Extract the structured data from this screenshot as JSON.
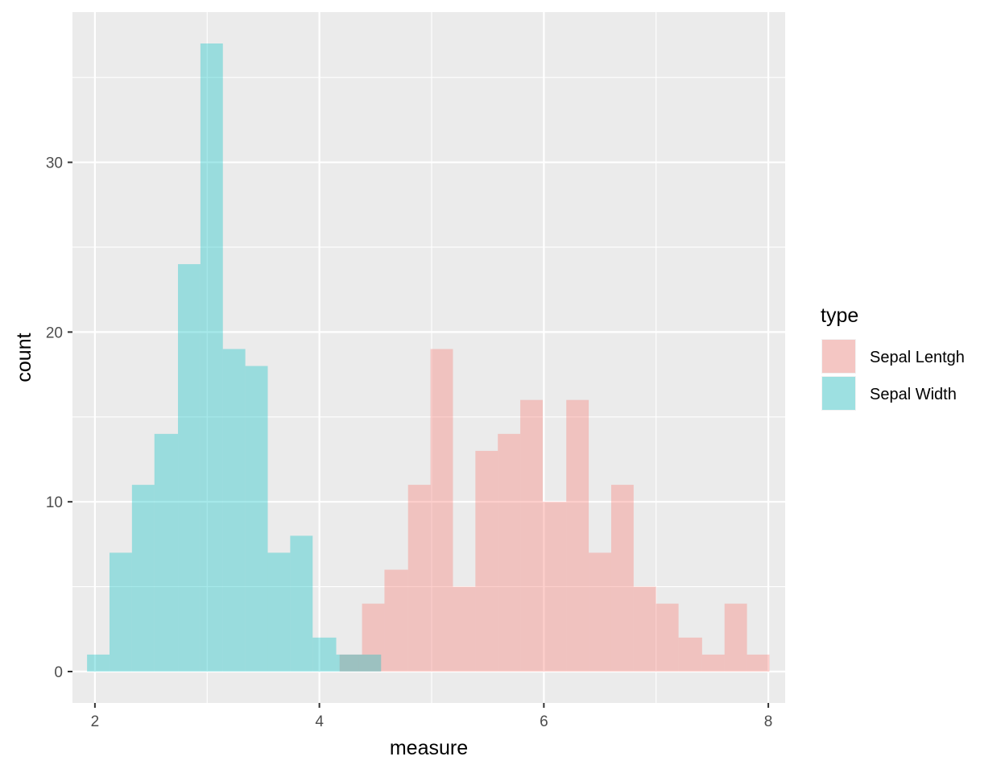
{
  "chart_data": {
    "type": "bar",
    "title": "",
    "xlabel": "measure",
    "ylabel": "count",
    "xlim": [
      1.8,
      8.15
    ],
    "ylim": [
      -1.85,
      38.85
    ],
    "x_ticks": [
      2,
      4,
      6,
      8
    ],
    "x_tick_labels": [
      "2",
      "4",
      "6",
      "8"
    ],
    "y_ticks": [
      0,
      10,
      20,
      30
    ],
    "y_tick_labels": [
      "0",
      "10",
      "20",
      "30"
    ],
    "grid": true,
    "bin_width": 0.2017,
    "legend": {
      "title": "type",
      "position": "right",
      "entries": [
        {
          "label": "Sepal Lentgh",
          "color": "#F8766D"
        },
        {
          "label": "Sepal Width",
          "color": "#00BFC4"
        }
      ]
    },
    "series": [
      {
        "name": "Sepal Lentgh",
        "color": "#F8766D",
        "opacity": 0.35,
        "bins": [
          {
            "x0": 4.18,
            "x1": 4.38,
            "count": 1
          },
          {
            "x0": 4.38,
            "x1": 4.58,
            "count": 4
          },
          {
            "x0": 4.58,
            "x1": 4.79,
            "count": 6
          },
          {
            "x0": 4.79,
            "x1": 4.99,
            "count": 11
          },
          {
            "x0": 4.99,
            "x1": 5.19,
            "count": 19
          },
          {
            "x0": 5.19,
            "x1": 5.39,
            "count": 5
          },
          {
            "x0": 5.39,
            "x1": 5.59,
            "count": 13
          },
          {
            "x0": 5.59,
            "x1": 5.79,
            "count": 14
          },
          {
            "x0": 5.79,
            "x1": 5.99,
            "count": 16
          },
          {
            "x0": 5.99,
            "x1": 6.2,
            "count": 10
          },
          {
            "x0": 6.2,
            "x1": 6.4,
            "count": 16
          },
          {
            "x0": 6.4,
            "x1": 6.6,
            "count": 7
          },
          {
            "x0": 6.6,
            "x1": 6.8,
            "count": 11
          },
          {
            "x0": 6.8,
            "x1": 7.0,
            "count": 5
          },
          {
            "x0": 7.0,
            "x1": 7.2,
            "count": 4
          },
          {
            "x0": 7.2,
            "x1": 7.41,
            "count": 2
          },
          {
            "x0": 7.41,
            "x1": 7.61,
            "count": 1
          },
          {
            "x0": 7.61,
            "x1": 7.81,
            "count": 4
          },
          {
            "x0": 7.81,
            "x1": 8.01,
            "count": 1
          }
        ]
      },
      {
        "name": "Sepal Width",
        "color": "#00BFC4",
        "opacity": 0.35,
        "bins": [
          {
            "x0": 1.93,
            "x1": 2.13,
            "count": 1
          },
          {
            "x0": 2.13,
            "x1": 2.33,
            "count": 7
          },
          {
            "x0": 2.33,
            "x1": 2.53,
            "count": 11
          },
          {
            "x0": 2.53,
            "x1": 2.74,
            "count": 14
          },
          {
            "x0": 2.74,
            "x1": 2.94,
            "count": 24
          },
          {
            "x0": 2.94,
            "x1": 3.14,
            "count": 37
          },
          {
            "x0": 3.14,
            "x1": 3.34,
            "count": 19
          },
          {
            "x0": 3.34,
            "x1": 3.54,
            "count": 18
          },
          {
            "x0": 3.54,
            "x1": 3.74,
            "count": 7
          },
          {
            "x0": 3.74,
            "x1": 3.94,
            "count": 8
          },
          {
            "x0": 3.94,
            "x1": 4.15,
            "count": 2
          },
          {
            "x0": 4.15,
            "x1": 4.35,
            "count": 1
          },
          {
            "x0": 4.35,
            "x1": 4.55,
            "count": 1
          }
        ]
      }
    ]
  }
}
